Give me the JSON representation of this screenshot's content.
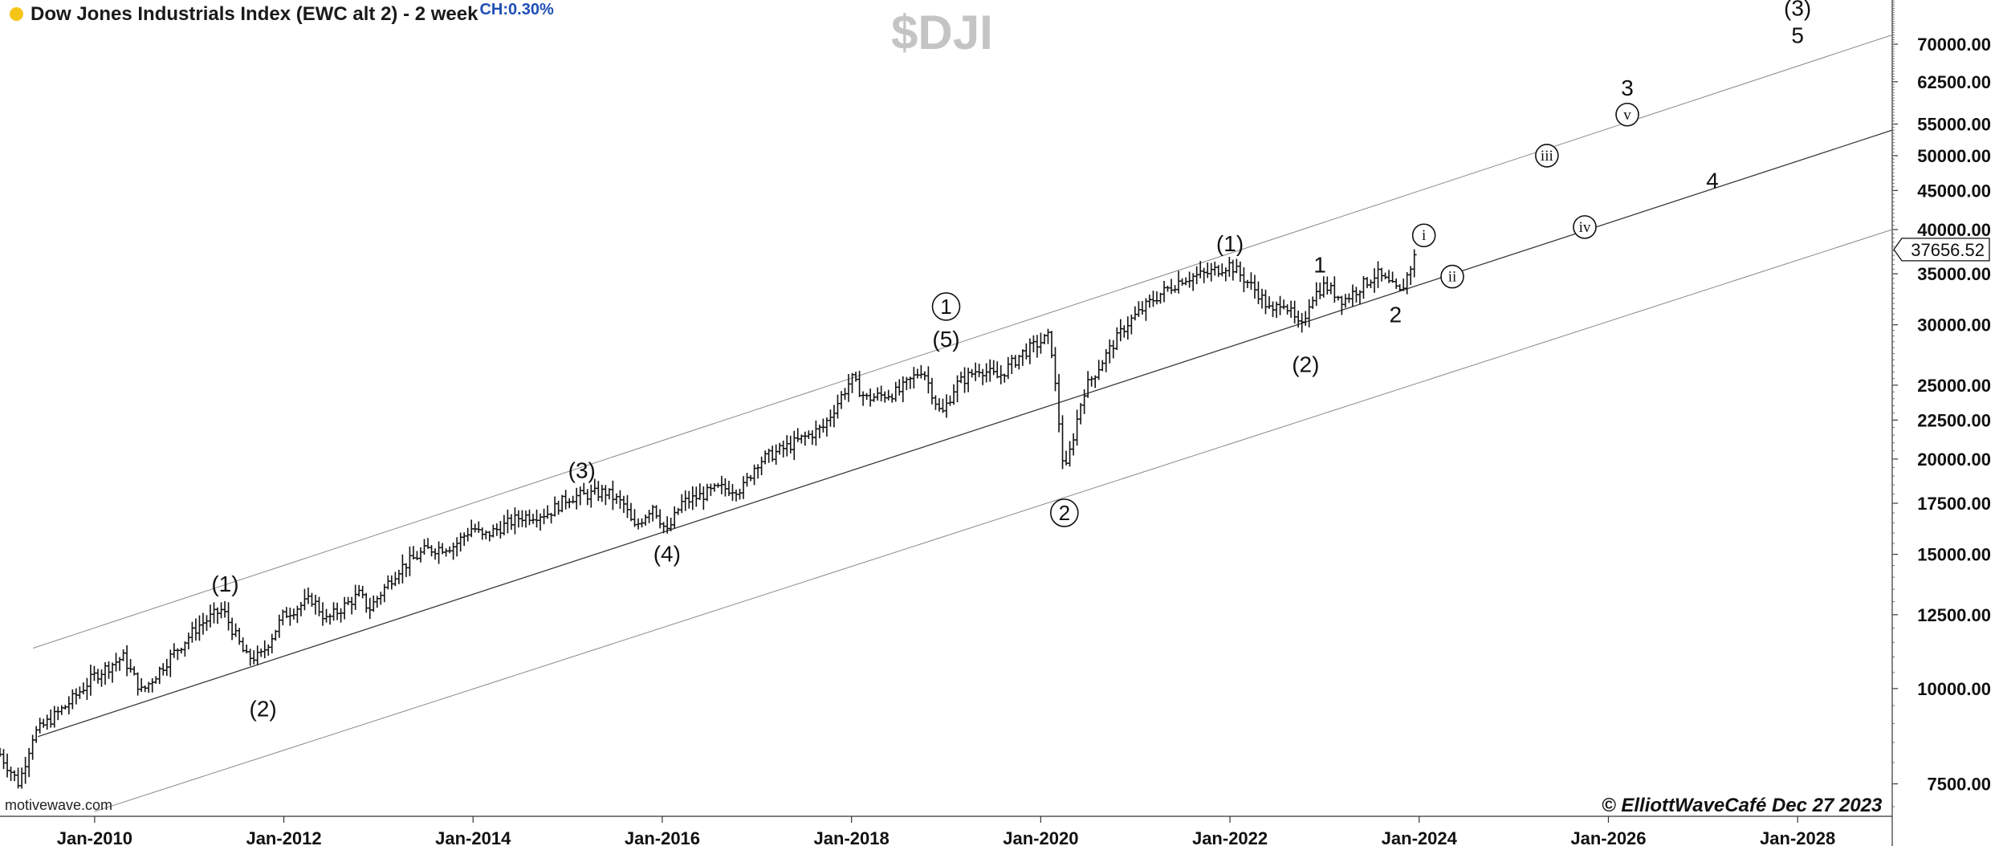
{
  "header": {
    "title": "Dow Jones Industrials Index (EWC alt 2) - 2 week",
    "change": "CH:0.30%",
    "symbol": "$DJI"
  },
  "footer": {
    "credit": "© ElliottWaveCafé Dec 27 2023",
    "source": "motivewave.com"
  },
  "colors": {
    "status_dot": "#f5c518",
    "change_text": "#1f4fb5",
    "symbol_text": "#c4c4c4"
  },
  "chart_data": {
    "type": "ohlc",
    "scale": "log",
    "x_range": [
      2009.0,
      2029.0
    ],
    "y_range": [
      6800,
      80000
    ],
    "x_ticks": [
      {
        "label": "Jan-2010",
        "x": 2010.0
      },
      {
        "label": "Jan-2012",
        "x": 2012.0
      },
      {
        "label": "Jan-2014",
        "x": 2014.0
      },
      {
        "label": "Jan-2016",
        "x": 2016.0
      },
      {
        "label": "Jan-2018",
        "x": 2018.0
      },
      {
        "label": "Jan-2020",
        "x": 2020.0
      },
      {
        "label": "Jan-2022",
        "x": 2022.0
      },
      {
        "label": "Jan-2024",
        "x": 2024.0
      },
      {
        "label": "Jan-2026",
        "x": 2026.0
      },
      {
        "label": "Jan-2028",
        "x": 2028.0
      }
    ],
    "y_ticks": [
      {
        "label": "7500.00",
        "y": 7500
      },
      {
        "label": "10000.00",
        "y": 10000
      },
      {
        "label": "12500.00",
        "y": 12500
      },
      {
        "label": "15000.00",
        "y": 15000
      },
      {
        "label": "17500.00",
        "y": 17500
      },
      {
        "label": "20000.00",
        "y": 20000
      },
      {
        "label": "22500.00",
        "y": 22500
      },
      {
        "label": "25000.00",
        "y": 25000
      },
      {
        "label": "30000.00",
        "y": 30000
      },
      {
        "label": "35000.00",
        "y": 35000
      },
      {
        "label": "40000.00",
        "y": 40000
      },
      {
        "label": "45000.00",
        "y": 45000
      },
      {
        "label": "50000.00",
        "y": 50000
      },
      {
        "label": "55000.00",
        "y": 55000
      },
      {
        "label": "62500.00",
        "y": 62500
      },
      {
        "label": "70000.00",
        "y": 70000
      }
    ],
    "last_price": {
      "label": "37656.52",
      "y": 37656.52
    },
    "price_path": [
      {
        "x": 2009.0,
        "y": 8200
      },
      {
        "x": 2009.2,
        "y": 7500
      },
      {
        "x": 2009.35,
        "y": 8700
      },
      {
        "x": 2009.7,
        "y": 9500
      },
      {
        "x": 2010.0,
        "y": 10400
      },
      {
        "x": 2010.3,
        "y": 11000
      },
      {
        "x": 2010.5,
        "y": 9900
      },
      {
        "x": 2010.8,
        "y": 11000
      },
      {
        "x": 2011.1,
        "y": 12100
      },
      {
        "x": 2011.35,
        "y": 12700
      },
      {
        "x": 2011.6,
        "y": 11000
      },
      {
        "x": 2011.75,
        "y": 11000
      },
      {
        "x": 2012.0,
        "y": 12500
      },
      {
        "x": 2012.3,
        "y": 13100
      },
      {
        "x": 2012.45,
        "y": 12300
      },
      {
        "x": 2012.8,
        "y": 13300
      },
      {
        "x": 2012.9,
        "y": 12700
      },
      {
        "x": 2013.2,
        "y": 14300
      },
      {
        "x": 2013.5,
        "y": 15200
      },
      {
        "x": 2013.8,
        "y": 15400
      },
      {
        "x": 2014.0,
        "y": 16300
      },
      {
        "x": 2014.1,
        "y": 15800
      },
      {
        "x": 2014.5,
        "y": 16800
      },
      {
        "x": 2014.8,
        "y": 17000
      },
      {
        "x": 2015.0,
        "y": 17800
      },
      {
        "x": 2015.4,
        "y": 18100
      },
      {
        "x": 2015.6,
        "y": 17400
      },
      {
        "x": 2015.7,
        "y": 16200
      },
      {
        "x": 2015.9,
        "y": 17400
      },
      {
        "x": 2016.05,
        "y": 16000
      },
      {
        "x": 2016.2,
        "y": 17500
      },
      {
        "x": 2016.6,
        "y": 18300
      },
      {
        "x": 2016.85,
        "y": 18300
      },
      {
        "x": 2017.0,
        "y": 19800
      },
      {
        "x": 2017.3,
        "y": 20700
      },
      {
        "x": 2017.7,
        "y": 22000
      },
      {
        "x": 2018.0,
        "y": 25500
      },
      {
        "x": 2018.15,
        "y": 24000
      },
      {
        "x": 2018.5,
        "y": 24500
      },
      {
        "x": 2018.75,
        "y": 26300
      },
      {
        "x": 2018.95,
        "y": 22800
      },
      {
        "x": 2019.1,
        "y": 25000
      },
      {
        "x": 2019.35,
        "y": 26300
      },
      {
        "x": 2019.55,
        "y": 25600
      },
      {
        "x": 2019.8,
        "y": 27500
      },
      {
        "x": 2020.1,
        "y": 29000
      },
      {
        "x": 2020.25,
        "y": 19000
      },
      {
        "x": 2020.45,
        "y": 24500
      },
      {
        "x": 2020.7,
        "y": 27500
      },
      {
        "x": 2020.9,
        "y": 30000
      },
      {
        "x": 2021.2,
        "y": 32500
      },
      {
        "x": 2021.5,
        "y": 34500
      },
      {
        "x": 2021.75,
        "y": 35000
      },
      {
        "x": 2022.0,
        "y": 36000
      },
      {
        "x": 2022.3,
        "y": 33000
      },
      {
        "x": 2022.45,
        "y": 31000
      },
      {
        "x": 2022.55,
        "y": 32500
      },
      {
        "x": 2022.75,
        "y": 29500
      },
      {
        "x": 2022.85,
        "y": 32500
      },
      {
        "x": 2023.0,
        "y": 33800
      },
      {
        "x": 2023.2,
        "y": 32300
      },
      {
        "x": 2023.55,
        "y": 35000
      },
      {
        "x": 2023.8,
        "y": 33000
      },
      {
        "x": 2023.98,
        "y": 37656
      }
    ],
    "channels": [
      {
        "name": "upper-channel",
        "x1": 2009.35,
        "y1": 11300,
        "x2": 2029.0,
        "y2": 72000
      },
      {
        "name": "mid-channel",
        "x1": 2009.4,
        "y1": 8650,
        "x2": 2029.0,
        "y2": 54000
      },
      {
        "name": "lower-channel",
        "x1": 2010.0,
        "y1": 6900,
        "x2": 2029.0,
        "y2": 40000
      }
    ],
    "annotations": [
      {
        "text": "(1)",
        "x": 2011.38,
        "y": 13700,
        "circled": false
      },
      {
        "text": "(2)",
        "x": 2011.78,
        "y": 9400,
        "circled": false
      },
      {
        "text": "(3)",
        "x": 2015.15,
        "y": 19300,
        "circled": false
      },
      {
        "text": "(4)",
        "x": 2016.05,
        "y": 15000,
        "circled": false
      },
      {
        "text": "1",
        "x": 2019.0,
        "y": 31700,
        "circled": true
      },
      {
        "text": "(5)",
        "x": 2019.0,
        "y": 28700,
        "circled": false
      },
      {
        "text": "2",
        "x": 2020.25,
        "y": 17000,
        "circled": true
      },
      {
        "text": "(1)",
        "x": 2022.0,
        "y": 38300,
        "circled": false
      },
      {
        "text": "(2)",
        "x": 2022.8,
        "y": 26600,
        "circled": false
      },
      {
        "text": "1",
        "x": 2022.95,
        "y": 35900,
        "circled": false
      },
      {
        "text": "2",
        "x": 2023.75,
        "y": 30900,
        "circled": false
      },
      {
        "text": "i",
        "x": 2024.05,
        "y": 39300,
        "circled": true
      },
      {
        "text": "ii",
        "x": 2024.35,
        "y": 34700,
        "circled": true
      },
      {
        "text": "iii",
        "x": 2025.35,
        "y": 50000,
        "circled": true
      },
      {
        "text": "iv",
        "x": 2025.75,
        "y": 40300,
        "circled": true
      },
      {
        "text": "v",
        "x": 2026.2,
        "y": 56600,
        "circled": true
      },
      {
        "text": "3",
        "x": 2026.2,
        "y": 61300,
        "circled": false
      },
      {
        "text": "4",
        "x": 2027.1,
        "y": 46300,
        "circled": false
      },
      {
        "text": "(3)",
        "x": 2028.0,
        "y": 78000,
        "circled": false
      },
      {
        "text": "5",
        "x": 2028.0,
        "y": 71800,
        "circled": false
      }
    ]
  }
}
